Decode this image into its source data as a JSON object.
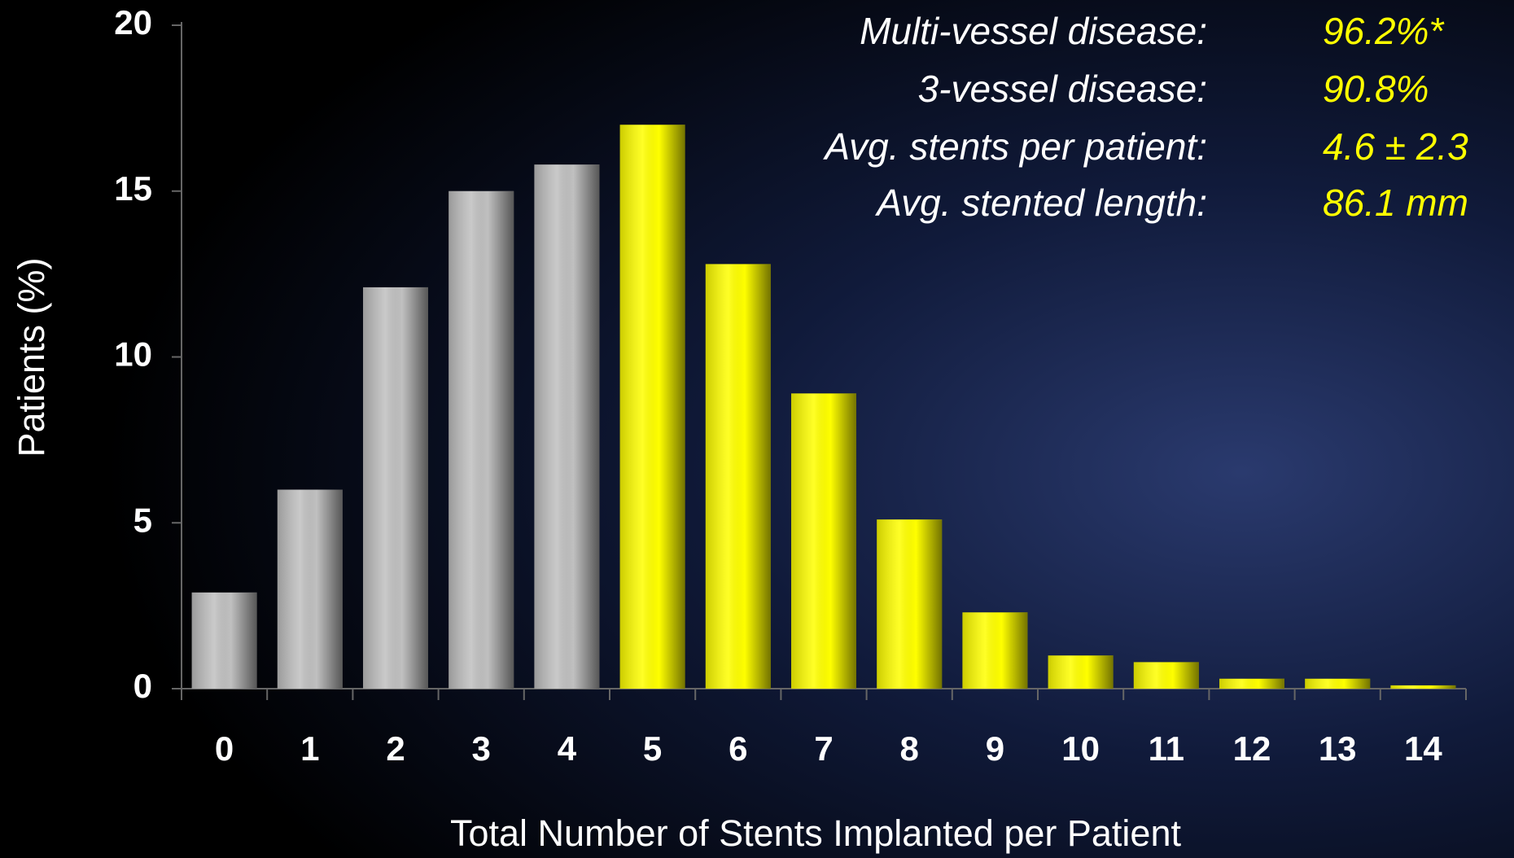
{
  "chart_data": {
    "type": "bar",
    "x_label": "Total Number of Stents Implanted per Patient",
    "y_label": "Patients (%)",
    "categories": [
      "0",
      "1",
      "2",
      "3",
      "4",
      "5",
      "6",
      "7",
      "8",
      "9",
      "10",
      "11",
      "12",
      "13",
      "14"
    ],
    "values": [
      2.9,
      6.0,
      12.1,
      15.0,
      15.8,
      17.0,
      12.8,
      8.9,
      5.1,
      2.3,
      1.0,
      0.8,
      0.3,
      0.3,
      0.1
    ],
    "colors": [
      "#c0c0c0",
      "#c0c0c0",
      "#c0c0c0",
      "#c0c0c0",
      "#c0c0c0",
      "#ffff00",
      "#ffff00",
      "#ffff00",
      "#ffff00",
      "#ffff00",
      "#ffff00",
      "#ffff00",
      "#ffff00",
      "#ffff00",
      "#ffff00"
    ],
    "ylim": [
      0,
      20
    ],
    "yticks": [
      0,
      5,
      10,
      15,
      20
    ],
    "annotations": [
      {
        "label": "Multi-vessel disease:",
        "value": "96.2%*"
      },
      {
        "label": "3-vessel disease:",
        "value": "90.8%"
      },
      {
        "label": "Avg. stents per patient:",
        "value": "4.6 ± 2.3"
      },
      {
        "label": "Avg. stented length:",
        "value": "86.1 mm"
      }
    ]
  }
}
